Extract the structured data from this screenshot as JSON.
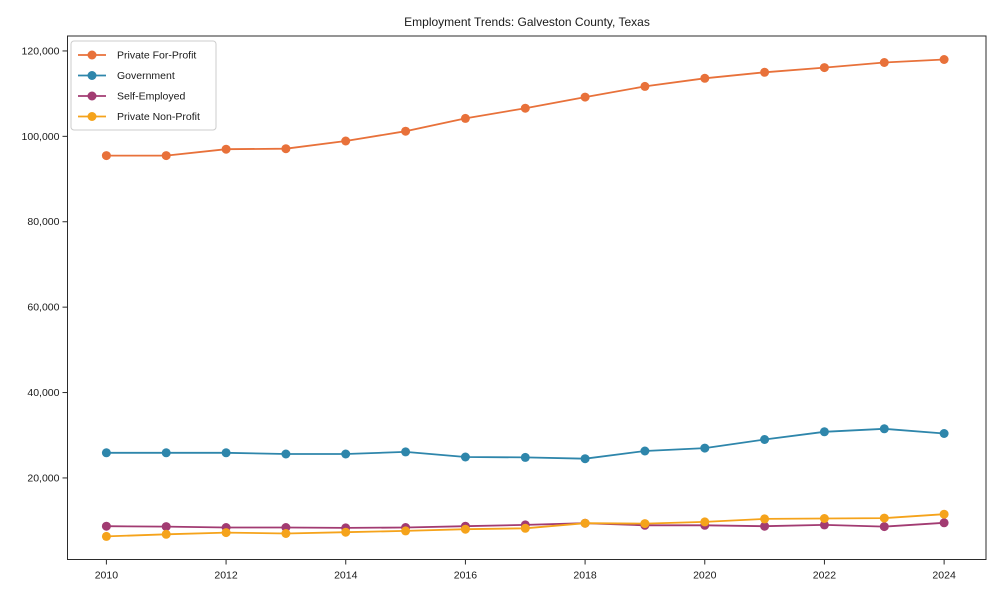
{
  "title": "Employment Trends: Galveston County, Texas",
  "chart_data": {
    "type": "line",
    "title": "Employment Trends: Galveston County, Texas",
    "xlabel": "",
    "ylabel": "",
    "grid": false,
    "legend_position": "upper left",
    "x": [
      2010,
      2011,
      2012,
      2013,
      2014,
      2015,
      2016,
      2017,
      2018,
      2019,
      2020,
      2021,
      2022,
      2023,
      2024
    ],
    "series": [
      {
        "name": "Private For-Profit",
        "color": "#E8713A",
        "values": [
          95500,
          95500,
          97000,
          97100,
          98900,
          101200,
          104200,
          106600,
          109200,
          111700,
          113600,
          115000,
          116100,
          117300,
          118000
        ]
      },
      {
        "name": "Government",
        "color": "#2E86AB",
        "values": [
          25900,
          25900,
          25900,
          25600,
          25600,
          26100,
          24900,
          24800,
          24500,
          26300,
          27000,
          29000,
          30800,
          31500,
          30400
        ]
      },
      {
        "name": "Self-Employed",
        "color": "#A23B72",
        "values": [
          8700,
          8600,
          8400,
          8400,
          8300,
          8400,
          8700,
          9000,
          9400,
          8900,
          8900,
          8700,
          9000,
          8600,
          9500
        ]
      },
      {
        "name": "Private Non-Profit",
        "color": "#F5A31B",
        "values": [
          6300,
          6800,
          7200,
          7000,
          7300,
          7600,
          8000,
          8200,
          9400,
          9300,
          9700,
          10400,
          10500,
          10600,
          11500
        ]
      }
    ],
    "x_ticks": [
      2010,
      2012,
      2014,
      2016,
      2018,
      2020,
      2022,
      2024
    ],
    "x_tick_labels": [
      "2010",
      "2012",
      "2014",
      "2016",
      "2018",
      "2020",
      "2022",
      "2024"
    ],
    "y_ticks": [
      20000,
      40000,
      60000,
      80000,
      100000,
      120000
    ],
    "y_tick_labels": [
      "20,000",
      "40,000",
      "60,000",
      "80,000",
      "100,000",
      "120,000"
    ],
    "xlim": [
      2009.35,
      2024.7
    ],
    "ylim": [
      900,
      123500
    ],
    "legend_labels": [
      "Private For-Profit",
      "Government",
      "Self-Employed",
      "Private Non-Profit"
    ]
  },
  "colors": {
    "spine": "#2b2b2b",
    "legend_border": "#cccccc",
    "background": "#ffffff"
  }
}
